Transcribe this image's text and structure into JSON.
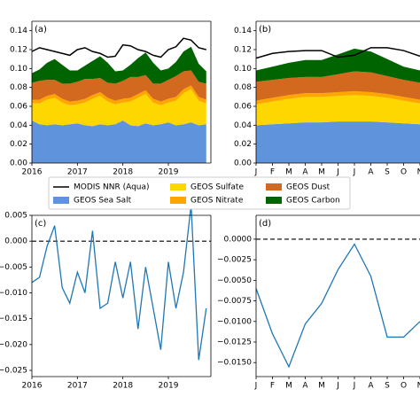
{
  "chart_data": [
    {
      "type": "area",
      "title": "(a)",
      "x": [
        2016,
        2016.167,
        2016.333,
        2016.5,
        2016.667,
        2016.833,
        2017,
        2017.167,
        2017.333,
        2017.5,
        2017.667,
        2017.833,
        2018,
        2018.167,
        2018.333,
        2018.5,
        2018.667,
        2018.833,
        2019,
        2019.167,
        2019.333,
        2019.5,
        2019.667,
        2019.833
      ],
      "xlim": [
        2016,
        2019.935
      ],
      "xticks": [
        2016,
        2017,
        2018,
        2019
      ],
      "ylim": [
        0,
        0.15
      ],
      "yticks": [
        {
          "value": 0,
          "label": "0.00"
        },
        {
          "value": 0.02,
          "label": "0.02"
        },
        {
          "value": 0.04,
          "label": "0.04"
        },
        {
          "value": 0.06,
          "label": "0.06"
        },
        {
          "value": 0.08,
          "label": "0.08"
        },
        {
          "value": 0.1,
          "label": "0.10"
        },
        {
          "value": 0.12,
          "label": "0.12"
        },
        {
          "value": 0.14,
          "label": "0.14"
        }
      ],
      "series": [
        {
          "name": "MODIS NNR (Aqua)",
          "color": "#000000",
          "type": "line",
          "values": [
            0.118,
            0.122,
            0.12,
            0.118,
            0.116,
            0.114,
            0.12,
            0.122,
            0.118,
            0.116,
            0.112,
            0.113,
            0.125,
            0.124,
            0.12,
            0.118,
            0.114,
            0.112,
            0.12,
            0.123,
            0.132,
            0.13,
            0.122,
            0.12
          ]
        },
        {
          "name": "GEOS Sea Salt",
          "color": "#5f93dc",
          "values": [
            0.045,
            0.041,
            0.04,
            0.041,
            0.04,
            0.041,
            0.042,
            0.04,
            0.039,
            0.041,
            0.04,
            0.041,
            0.045,
            0.04,
            0.039,
            0.042,
            0.04,
            0.041,
            0.043,
            0.04,
            0.041,
            0.043,
            0.04,
            0.041
          ]
        },
        {
          "name": "GEOS Sulfate",
          "color": "#ffd700",
          "values": [
            0.018,
            0.022,
            0.027,
            0.028,
            0.024,
            0.02,
            0.02,
            0.024,
            0.029,
            0.03,
            0.025,
            0.021,
            0.019,
            0.025,
            0.03,
            0.031,
            0.024,
            0.02,
            0.021,
            0.026,
            0.033,
            0.035,
            0.026,
            0.022
          ]
        },
        {
          "name": "GEOS Nitrate",
          "color": "#ffa500",
          "values": [
            0.004,
            0.004,
            0.004,
            0.004,
            0.004,
            0.004,
            0.004,
            0.004,
            0.004,
            0.004,
            0.004,
            0.004,
            0.004,
            0.004,
            0.004,
            0.004,
            0.004,
            0.004,
            0.004,
            0.004,
            0.004,
            0.004,
            0.004,
            0.004
          ]
        },
        {
          "name": "GEOS Dust",
          "color": "#d2691e",
          "values": [
            0.018,
            0.02,
            0.017,
            0.015,
            0.016,
            0.019,
            0.02,
            0.021,
            0.017,
            0.015,
            0.016,
            0.018,
            0.019,
            0.022,
            0.018,
            0.016,
            0.016,
            0.019,
            0.02,
            0.022,
            0.019,
            0.016,
            0.016,
            0.017
          ]
        },
        {
          "name": "GEOS Carbon",
          "color": "#006400",
          "values": [
            0.01,
            0.012,
            0.018,
            0.022,
            0.02,
            0.014,
            0.012,
            0.014,
            0.019,
            0.023,
            0.021,
            0.013,
            0.011,
            0.013,
            0.02,
            0.024,
            0.022,
            0.014,
            0.012,
            0.015,
            0.021,
            0.025,
            0.019,
            0.013
          ]
        }
      ]
    },
    {
      "type": "area",
      "title": "(b)",
      "categories": [
        "J",
        "F",
        "M",
        "A",
        "M",
        "J",
        "J",
        "A",
        "S",
        "O",
        "N"
      ],
      "ylim": [
        0,
        0.15
      ],
      "yticks": [
        {
          "value": 0,
          "label": "0.00"
        },
        {
          "value": 0.02,
          "label": "0.02"
        },
        {
          "value": 0.04,
          "label": "0.04"
        },
        {
          "value": 0.06,
          "label": "0.06"
        },
        {
          "value": 0.08,
          "label": "0.08"
        },
        {
          "value": 0.1,
          "label": "0.10"
        },
        {
          "value": 0.12,
          "label": "0.12"
        },
        {
          "value": 0.14,
          "label": "0.14"
        }
      ],
      "series": [
        {
          "color": "#000000",
          "type": "line",
          "values": [
            0.111,
            0.116,
            0.118,
            0.119,
            0.119,
            0.112,
            0.114,
            0.122,
            0.122,
            0.119,
            0.113
          ]
        },
        {
          "color": "#5f93dc",
          "values": [
            0.04,
            0.041,
            0.042,
            0.043,
            0.043,
            0.044,
            0.044,
            0.044,
            0.043,
            0.042,
            0.041
          ]
        },
        {
          "color": "#ffd700",
          "values": [
            0.022,
            0.024,
            0.026,
            0.027,
            0.027,
            0.027,
            0.028,
            0.027,
            0.026,
            0.024,
            0.022
          ]
        },
        {
          "color": "#ffa500",
          "values": [
            0.004,
            0.004,
            0.004,
            0.004,
            0.004,
            0.004,
            0.004,
            0.004,
            0.004,
            0.004,
            0.004
          ]
        },
        {
          "color": "#d2691e",
          "values": [
            0.02,
            0.019,
            0.018,
            0.017,
            0.017,
            0.019,
            0.021,
            0.021,
            0.019,
            0.018,
            0.018
          ]
        },
        {
          "color": "#006400",
          "values": [
            0.012,
            0.014,
            0.016,
            0.018,
            0.018,
            0.021,
            0.024,
            0.022,
            0.018,
            0.014,
            0.013
          ]
        }
      ]
    },
    {
      "type": "line",
      "title": "(c)",
      "x": [
        2016,
        2016.167,
        2016.333,
        2016.5,
        2016.667,
        2016.833,
        2017,
        2017.167,
        2017.333,
        2017.5,
        2017.667,
        2017.833,
        2018,
        2018.167,
        2018.333,
        2018.5,
        2018.667,
        2018.833,
        2019,
        2019.167,
        2019.333,
        2019.5,
        2019.667,
        2019.833
      ],
      "xlim": [
        2016,
        2019.935
      ],
      "xticks": [
        2016,
        2017,
        2018,
        2019
      ],
      "ylim": [
        -0.0262,
        0.005
      ],
      "yticks": [
        0.005,
        {
          "value": 0,
          "label": "0.000"
        },
        {
          "value": -0.005,
          "label": "−0.005"
        },
        {
          "value": -0.01,
          "label": "−0.010"
        },
        {
          "value": -0.015,
          "label": "−0.015"
        },
        {
          "value": -0.02,
          "label": "−0.020"
        },
        {
          "value": -0.025,
          "label": "−0.025"
        }
      ],
      "reference_line": 0,
      "series": [
        {
          "color": "#1f77b4",
          "values": [
            -0.008,
            -0.007,
            -0.001,
            0.003,
            -0.009,
            -0.012,
            -0.006,
            -0.01,
            0.002,
            -0.013,
            -0.012,
            -0.004,
            -0.011,
            -0.004,
            -0.017,
            -0.005,
            -0.013,
            -0.021,
            -0.004,
            -0.013,
            -0.006,
            0.007,
            -0.023,
            -0.013
          ]
        }
      ]
    },
    {
      "type": "line",
      "title": "(d)",
      "categories": [
        "J",
        "F",
        "M",
        "A",
        "M",
        "J",
        "J",
        "A",
        "S",
        "O",
        "N"
      ],
      "ylim": [
        -0.0167,
        0.0029
      ],
      "yticks": [
        {
          "value": 0,
          "label": "0.0000"
        },
        {
          "value": -0.0025,
          "label": "−0.0025"
        },
        {
          "value": -0.005,
          "label": "−0.0050"
        },
        {
          "value": -0.0075,
          "label": "−0.0075"
        },
        {
          "value": -0.01,
          "label": "−0.0100"
        },
        {
          "value": -0.0125,
          "label": "−0.0125"
        },
        {
          "value": -0.015,
          "label": "−0.0150"
        }
      ],
      "reference_line": 0,
      "series": [
        {
          "color": "#1f77b4",
          "values": [
            -0.006,
            -0.0115,
            -0.0155,
            -0.0103,
            -0.0078,
            -0.0037,
            -0.0006,
            -0.0045,
            -0.0119,
            -0.0119,
            -0.01
          ]
        }
      ]
    }
  ]
}
